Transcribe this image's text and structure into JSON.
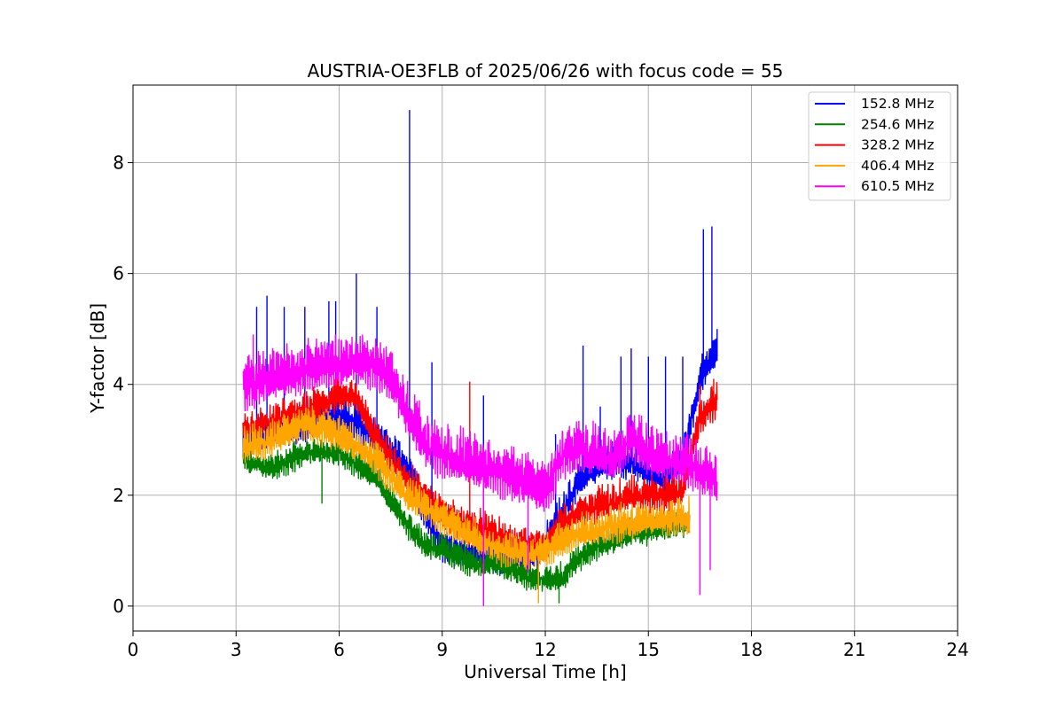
{
  "chart_data": {
    "type": "line",
    "title": "AUSTRIA-OE3FLB of 2025/06/26 with focus code = 55",
    "xlabel": "Universal Time [h]",
    "ylabel": "Y-factor [dB]",
    "xlim": [
      0,
      24
    ],
    "ylim": [
      -0.45,
      9.4
    ],
    "xticks": [
      0,
      3,
      6,
      9,
      12,
      15,
      18,
      21,
      24
    ],
    "yticks": [
      0,
      2,
      4,
      6,
      8
    ],
    "grid": true,
    "legend_position": "top-right",
    "series": [
      {
        "name": "152.8 MHz",
        "color": "#0000ff",
        "x": [
          3.2,
          4,
          5,
          6,
          6.5,
          7,
          7.5,
          8,
          8.5,
          9,
          9.5,
          10,
          10.5,
          11,
          11.5,
          12,
          12.5,
          13,
          13.5,
          14,
          14.5,
          15,
          15.5,
          16,
          16.5,
          17
        ],
        "values": [
          2.9,
          3.0,
          3.2,
          3.3,
          3.2,
          3.0,
          2.7,
          2.4,
          1.6,
          1.0,
          0.9,
          0.8,
          0.85,
          0.8,
          0.75,
          1.0,
          1.6,
          2.2,
          2.4,
          2.5,
          2.5,
          2.3,
          2.2,
          2.5,
          4.0,
          4.5
        ],
        "spikes": [
          [
            3.6,
            5.4
          ],
          [
            3.9,
            5.6
          ],
          [
            4.4,
            5.4
          ],
          [
            5.0,
            5.4
          ],
          [
            5.7,
            5.5
          ],
          [
            5.9,
            5.5
          ],
          [
            6.5,
            6.0
          ],
          [
            7.1,
            5.4
          ],
          [
            8.05,
            8.95
          ],
          [
            8.7,
            4.4
          ],
          [
            10.2,
            3.8
          ],
          [
            12.3,
            3.1
          ],
          [
            13.1,
            4.7
          ],
          [
            13.6,
            3.6
          ],
          [
            14.2,
            4.5
          ],
          [
            14.5,
            4.65
          ],
          [
            15.0,
            4.5
          ],
          [
            15.5,
            4.5
          ],
          [
            16.0,
            4.5
          ],
          [
            16.6,
            6.8
          ],
          [
            16.85,
            6.85
          ],
          [
            17.0,
            5.0
          ]
        ]
      },
      {
        "name": "254.6 MHz",
        "color": "#008000",
        "x": [
          3.2,
          4,
          5,
          6,
          7,
          8,
          8.5,
          9,
          9.5,
          10,
          10.5,
          11,
          11.5,
          12,
          12.5,
          13,
          13.5,
          14,
          14.5,
          15,
          15.5,
          16,
          16.2
        ],
        "values": [
          2.6,
          2.4,
          2.7,
          2.7,
          2.3,
          1.4,
          1.0,
          0.95,
          0.8,
          0.7,
          0.7,
          0.6,
          0.45,
          0.4,
          0.45,
          0.8,
          1.0,
          1.1,
          1.25,
          1.3,
          1.35,
          1.4,
          1.4
        ],
        "spikes": [
          [
            5.5,
            1.85
          ],
          [
            12.4,
            0.05
          ]
        ]
      },
      {
        "name": "328.2 MHz",
        "color": "#ff0000",
        "x": [
          3.2,
          4,
          5,
          6,
          6.5,
          7,
          8,
          8.5,
          9,
          9.5,
          10,
          10.5,
          11,
          11.5,
          12,
          12.5,
          13,
          13.5,
          14,
          14.5,
          15,
          15.5,
          16,
          16.5,
          17
        ],
        "values": [
          3.1,
          3.2,
          3.4,
          3.7,
          3.7,
          3.0,
          2.2,
          1.9,
          1.6,
          1.4,
          1.3,
          1.2,
          1.1,
          1.0,
          1.0,
          1.4,
          1.6,
          1.7,
          1.8,
          1.9,
          1.9,
          1.9,
          2.0,
          3.3,
          3.6
        ],
        "spikes": [
          [
            9.8,
            4.05
          ],
          [
            16.5,
            4.0
          ],
          [
            16.9,
            4.1
          ]
        ]
      },
      {
        "name": "406.4 MHz",
        "color": "#ffa500",
        "x": [
          3.2,
          4,
          5,
          6,
          6.5,
          7,
          8,
          8.5,
          9,
          9.5,
          10,
          10.5,
          11,
          11.5,
          12,
          12.5,
          13,
          13.5,
          14,
          14.5,
          15,
          15.5,
          16,
          16.2
        ],
        "values": [
          2.8,
          2.9,
          3.2,
          3.0,
          2.8,
          2.6,
          1.9,
          1.7,
          1.5,
          1.3,
          1.1,
          1.0,
          0.9,
          0.85,
          0.9,
          1.1,
          1.2,
          1.3,
          1.35,
          1.4,
          1.45,
          1.45,
          1.5,
          1.5
        ],
        "spikes": [
          [
            11.8,
            0.05
          ]
        ]
      },
      {
        "name": "610.5 MHz",
        "color": "#ff00ff",
        "x": [
          3.2,
          4,
          5,
          5.5,
          6,
          6.5,
          7,
          7.5,
          8,
          8.5,
          9,
          9.5,
          10,
          10.5,
          11,
          11.5,
          12,
          12.5,
          13,
          13.5,
          14,
          14.5,
          15,
          15.5,
          16,
          16.5,
          17
        ],
        "values": [
          3.8,
          4.0,
          4.1,
          4.2,
          4.2,
          4.3,
          4.2,
          4.0,
          3.3,
          2.8,
          2.6,
          2.5,
          2.4,
          2.3,
          2.2,
          2.1,
          1.9,
          2.6,
          2.7,
          2.6,
          2.5,
          2.9,
          2.6,
          2.5,
          2.5,
          2.3,
          2.1
        ],
        "spikes": [
          [
            3.5,
            4.9
          ],
          [
            10.2,
            0.0
          ],
          [
            11.5,
            0.6
          ],
          [
            16.5,
            0.2
          ],
          [
            16.8,
            0.65
          ]
        ]
      }
    ]
  }
}
